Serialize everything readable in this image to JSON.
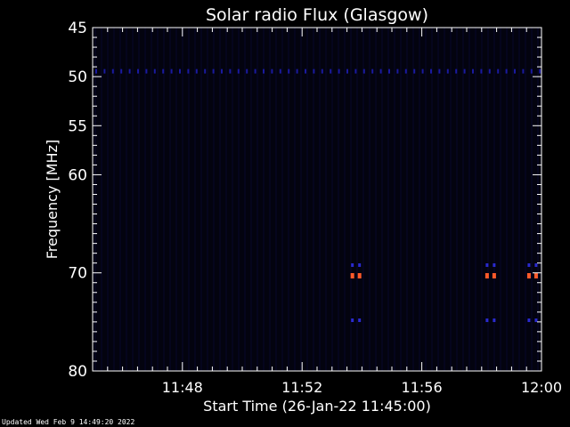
{
  "chart_data": {
    "type": "heatmap",
    "title": "Solar radio Flux (Glasgow)",
    "xlabel": "Start Time (26-Jan-22 11:45:00)",
    "ylabel": "Frequency [MHz]",
    "x_range_minutes_after_11_00": [
      45,
      60
    ],
    "y_range_mhz": [
      45,
      80
    ],
    "y_reversed": true,
    "x_ticks": [
      {
        "label": "11:48",
        "minute": 48
      },
      {
        "label": "11:52",
        "minute": 52
      },
      {
        "label": "11:56",
        "minute": 56
      },
      {
        "label": "12:00",
        "minute": 60
      }
    ],
    "y_ticks": [
      {
        "label": "45",
        "mhz": 45
      },
      {
        "label": "50",
        "mhz": 50
      },
      {
        "label": "55",
        "mhz": 55
      },
      {
        "label": "60",
        "mhz": 60
      },
      {
        "label": "70",
        "mhz": 70
      },
      {
        "label": "80",
        "mhz": 80
      }
    ],
    "features": [
      {
        "kind": "persistent-band",
        "mhz": 49.5,
        "intensity": "low",
        "color": "#1a1aa0"
      },
      {
        "kind": "burst",
        "minute": 53.8,
        "mhz": 70.3,
        "intensity": "high",
        "color": "#ff5a2a"
      },
      {
        "kind": "burst",
        "minute": 58.3,
        "mhz": 70.3,
        "intensity": "high",
        "color": "#ff5a2a"
      },
      {
        "kind": "burst",
        "minute": 59.7,
        "mhz": 70.3,
        "intensity": "high",
        "color": "#ff5a2a"
      }
    ],
    "grid": false,
    "colors": {
      "background": "#000000",
      "plot_background": "#03030f",
      "axis": "#ffffff",
      "low": "#1a1aa0",
      "high": "#ff5a2a"
    }
  },
  "footer": "Updated Wed Feb  9 14:49:20 2022"
}
